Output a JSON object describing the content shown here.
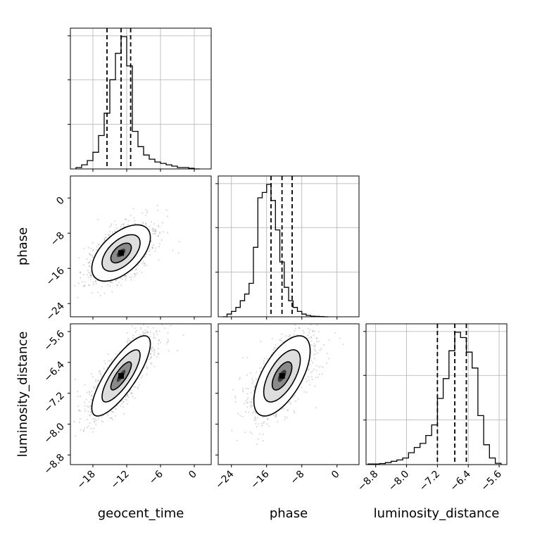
{
  "chart_data": {
    "type": "corner",
    "parameters": [
      "geocent_time",
      "phase",
      "luminosity_distance"
    ],
    "axis_labels": {
      "x": [
        "geocent_time",
        "phase",
        "luminosity_distance"
      ],
      "y": [
        "",
        "phase",
        "luminosity_distance"
      ]
    },
    "ranges": {
      "geocent_time": [
        -22,
        3
      ],
      "phase": [
        -27,
        5
      ],
      "luminosity_distance": [
        -9.05,
        -5.4
      ]
    },
    "ticks": {
      "geocent_time": {
        "values": [
          -18,
          -12,
          -6,
          0
        ],
        "labels": [
          "−18",
          "−12",
          "−6",
          "0"
        ]
      },
      "phase": {
        "values": [
          -24,
          -16,
          -8,
          0
        ],
        "labels": [
          "−24",
          "−16",
          "−8",
          "0"
        ]
      },
      "luminosity_distance": {
        "values": [
          -8.8,
          -8.0,
          -7.2,
          -6.4,
          -5.6
        ],
        "labels": [
          "−8.8",
          "−8.0",
          "−7.2",
          "−6.4",
          "−5.6"
        ]
      }
    },
    "quantiles": {
      "geocent_time": [
        -15.5,
        -13.0,
        -11.3
      ],
      "phase": [
        -15.0,
        -12.5,
        -10.2
      ],
      "luminosity_distance": [
        -7.2,
        -6.75,
        -6.45
      ]
    },
    "histograms": {
      "geocent_time": {
        "edges": [
          -21,
          -20,
          -19,
          -18,
          -17,
          -16,
          -15,
          -14,
          -13,
          -12,
          -11,
          -10,
          -9,
          -8,
          -7,
          -6,
          -5,
          -4,
          -3,
          -2,
          -1,
          0,
          1
        ],
        "counts": [
          1,
          3,
          6,
          12,
          24,
          40,
          64,
          83,
          95,
          74,
          27,
          16,
          10,
          7,
          5,
          4,
          3,
          2,
          1,
          1,
          0.5,
          0
        ]
      },
      "phase": {
        "edges": [
          -26,
          -25,
          -24,
          -23,
          -22,
          -21,
          -20,
          -19,
          -18,
          -17,
          -16,
          -15,
          -14,
          -13,
          -12,
          -11,
          -10,
          -9,
          -8,
          -7,
          -6,
          -5,
          -4,
          -3,
          -2
        ],
        "counts": [
          0,
          2,
          4,
          7,
          12,
          17,
          25,
          52,
          89,
          93,
          99,
          87,
          65,
          41,
          22,
          12,
          7,
          4,
          2,
          1,
          0.5,
          0.3,
          0.2,
          0
        ]
      },
      "luminosity_distance": {
        "edges": [
          -9.0,
          -8.85,
          -8.7,
          -8.55,
          -8.4,
          -8.25,
          -8.1,
          -7.95,
          -7.8,
          -7.65,
          -7.5,
          -7.35,
          -7.2,
          -7.05,
          -6.9,
          -6.75,
          -6.6,
          -6.45,
          -6.3,
          -6.15,
          -6.0,
          -5.85,
          -5.7,
          -5.55
        ],
        "counts": [
          0.5,
          0.5,
          0.8,
          1.5,
          2.5,
          3.5,
          5,
          9,
          13,
          16,
          22,
          30,
          50,
          65,
          86,
          100,
          96,
          85,
          73,
          37,
          15,
          5,
          1
        ]
      }
    },
    "pair_plots": [
      {
        "x": "geocent_time",
        "y": "phase",
        "center": [
          -13.0,
          -12.5
        ],
        "sd": [
          2.6,
          3.2
        ],
        "rho": 0.55
      },
      {
        "x": "geocent_time",
        "y": "luminosity_distance",
        "center": [
          -13.0,
          -6.75
        ],
        "sd": [
          2.6,
          0.52
        ],
        "rho": 0.8
      },
      {
        "x": "phase",
        "y": "luminosity_distance",
        "center": [
          -12.5,
          -6.75
        ],
        "sd": [
          3.2,
          0.52
        ],
        "rho": 0.62
      }
    ]
  }
}
